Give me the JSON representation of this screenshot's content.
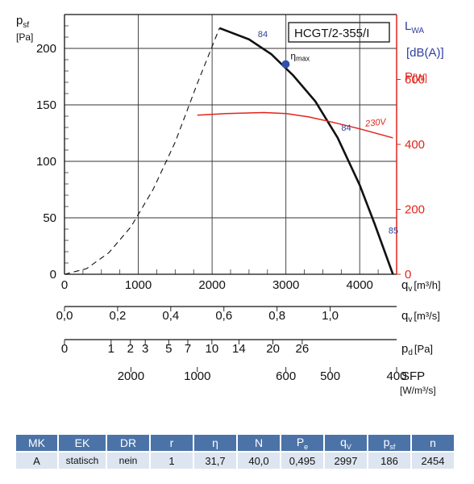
{
  "chart_data": {
    "type": "line",
    "title": "HCGT/2-355/I",
    "ylabel_left": "p",
    "ylabel_left_sub": "sf",
    "ylabel_left_unit": "[Pa]",
    "ylabel_right_sound": "L",
    "ylabel_right_sound_sub": "WA",
    "ylabel_right_sound_unit": "[dB(A)]",
    "ylabel_right_power": "P",
    "ylabel_right_power_unit": "[W]",
    "xlim": [
      0,
      4500
    ],
    "ylim": [
      0,
      230
    ],
    "ylim_power": [
      0,
      800
    ],
    "yticks": [
      "0",
      "50",
      "100",
      "150",
      "200"
    ],
    "yticks_power": [
      "0",
      "200",
      "400",
      "600"
    ],
    "x_axes": [
      {
        "label": "q",
        "label_sub": "v",
        "unit": "[m³/h]",
        "ticks": [
          "0",
          "1000",
          "2000",
          "3000",
          "4000"
        ]
      },
      {
        "label": "q",
        "label_sub": "v",
        "unit": "[m³/s]",
        "ticks": [
          "0,0",
          "0,2",
          "0,4",
          "0,6",
          "0,8",
          "1,0"
        ]
      },
      {
        "label": "p",
        "label_sub": "d",
        "unit": "[Pa]",
        "ticks": [
          "0",
          "1",
          "2",
          "3",
          "5",
          "7",
          "10",
          "14",
          "20",
          "26"
        ]
      },
      {
        "label": "SFP",
        "label_sub": "",
        "unit": "[W/m³/s]",
        "ticks": [
          "2000",
          "1000",
          "600",
          "500",
          "400"
        ]
      }
    ],
    "series": [
      {
        "name": "",
        "style": "dashed",
        "color": "#111111",
        "x": [
          0,
          300,
          600,
          900,
          1200,
          1500,
          1800,
          2100
        ],
        "y": [
          0,
          5,
          19,
          42,
          75,
          117,
          169,
          218
        ]
      },
      {
        "name": "",
        "style": "solid",
        "color": "#111111",
        "x": [
          2100,
          2500,
          2800,
          3100,
          3400,
          3700,
          4000,
          4200,
          4450
        ],
        "y": [
          218,
          208,
          195,
          176,
          153,
          121,
          79,
          45,
          0
        ]
      },
      {
        "name": "230V",
        "style": "solid",
        "color": "#e2231a",
        "axis": "power",
        "x": [
          1800,
          2200,
          2700,
          3000,
          3300,
          3600,
          4000,
          4450
        ],
        "y": [
          490,
          495,
          498,
          495,
          485,
          470,
          448,
          420
        ]
      }
    ],
    "annotations": {
      "sound_levels": [
        "84",
        "84",
        "85"
      ],
      "eta_max_label": "η",
      "eta_max_sub": "max",
      "eta_max_point": {
        "x": 2997,
        "y": 186
      },
      "power_curve_label": "230V"
    }
  },
  "table": {
    "headers": [
      "MK",
      "EK",
      "DR",
      "r",
      "η",
      "N",
      "P",
      "q",
      "p",
      "n"
    ],
    "header_subs": [
      "",
      "",
      "",
      "",
      "",
      "",
      "e",
      "V",
      "sf",
      ""
    ],
    "values": [
      "A",
      "statisch",
      "nein",
      "1",
      "31,7",
      "40,0",
      "0,495",
      "2997",
      "186",
      "2454"
    ]
  },
  "colors": {
    "curve": "#111111",
    "power": "#e2231a",
    "sound": "#2f3f9e",
    "table_header": "#4b73a8",
    "table_row": "#dde5f0"
  }
}
